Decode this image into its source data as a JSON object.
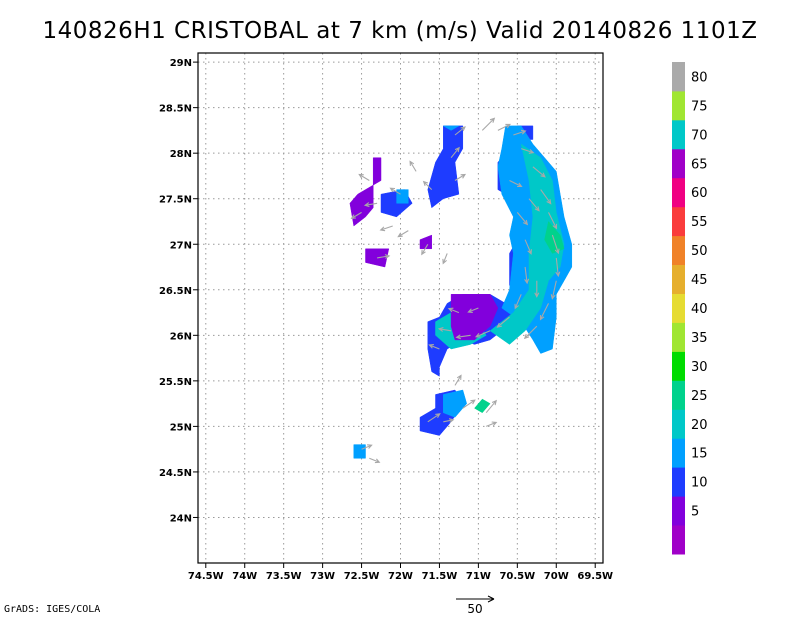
{
  "title": "140826H1 CRISTOBAL at 7 km (m/s) Valid 20140826 1101Z",
  "footer": "GrADS: IGES/COLA",
  "reference_vector": {
    "label": "50",
    "value": 50,
    "units": "m/s"
  },
  "map": {
    "lon_range": [
      -74.6,
      -69.4
    ],
    "lat_range": [
      23.5,
      29.1
    ],
    "lon_ticks": [
      {
        "value": -74.5,
        "label": "74.5W"
      },
      {
        "value": -74.0,
        "label": "74W"
      },
      {
        "value": -73.5,
        "label": "73.5W"
      },
      {
        "value": -73.0,
        "label": "73W"
      },
      {
        "value": -72.5,
        "label": "72.5W"
      },
      {
        "value": -72.0,
        "label": "72W"
      },
      {
        "value": -71.5,
        "label": "71.5W"
      },
      {
        "value": -71.0,
        "label": "71W"
      },
      {
        "value": -70.5,
        "label": "70.5W"
      },
      {
        "value": -70.0,
        "label": "70W"
      },
      {
        "value": -69.5,
        "label": "69.5W"
      }
    ],
    "lat_ticks": [
      {
        "value": 29.0,
        "label": "29N"
      },
      {
        "value": 28.5,
        "label": "28.5N"
      },
      {
        "value": 28.0,
        "label": "28N"
      },
      {
        "value": 27.5,
        "label": "27.5N"
      },
      {
        "value": 27.0,
        "label": "27N"
      },
      {
        "value": 26.5,
        "label": "26.5N"
      },
      {
        "value": 26.0,
        "label": "26N"
      },
      {
        "value": 25.5,
        "label": "25.5N"
      },
      {
        "value": 25.0,
        "label": "25N"
      },
      {
        "value": 24.5,
        "label": "24.5N"
      },
      {
        "value": 24.0,
        "label": "24N"
      }
    ],
    "grid": "dotted"
  },
  "colorbar": {
    "levels": [
      {
        "label": "",
        "color": "#a000c8"
      },
      {
        "label": "5",
        "color": "#8200dc"
      },
      {
        "label": "10",
        "color": "#1e3cff"
      },
      {
        "label": "15",
        "color": "#00a0ff"
      },
      {
        "label": "20",
        "color": "#00c8c8"
      },
      {
        "label": "25",
        "color": "#00d28c"
      },
      {
        "label": "30",
        "color": "#00dc00"
      },
      {
        "label": "35",
        "color": "#a0e632"
      },
      {
        "label": "40",
        "color": "#e6dc32"
      },
      {
        "label": "45",
        "color": "#e6af2d"
      },
      {
        "label": "50",
        "color": "#f08228"
      },
      {
        "label": "55",
        "color": "#fa3c3c"
      },
      {
        "label": "60",
        "color": "#f00082"
      },
      {
        "label": "65",
        "color": "#a000c8"
      },
      {
        "label": "70",
        "color": "#00c8c8"
      },
      {
        "label": "75",
        "color": "#a0e632"
      },
      {
        "label": "80",
        "color": "#aaaaaa"
      }
    ]
  },
  "wind_speed_regions": [
    {
      "level": 2,
      "polygon": [
        [
          -70.5,
          28.3
        ],
        [
          -70.3,
          28.3
        ],
        [
          -70.3,
          28.15
        ],
        [
          -70.45,
          28.15
        ],
        [
          -70.6,
          28.05
        ],
        [
          -70.75,
          27.9
        ],
        [
          -70.75,
          27.6
        ],
        [
          -70.55,
          27.5
        ],
        [
          -70.4,
          27.25
        ],
        [
          -70.5,
          27.05
        ],
        [
          -70.6,
          26.9
        ],
        [
          -70.6,
          26.55
        ],
        [
          -70.5,
          26.45
        ],
        [
          -70.3,
          26.45
        ],
        [
          -70.3,
          26.2
        ],
        [
          -70.55,
          26.3
        ],
        [
          -70.85,
          26.45
        ],
        [
          -71.2,
          26.45
        ],
        [
          -71.4,
          26.35
        ],
        [
          -71.5,
          26.2
        ],
        [
          -71.65,
          26.15
        ],
        [
          -71.65,
          25.85
        ],
        [
          -71.6,
          25.6
        ],
        [
          -71.5,
          25.55
        ],
        [
          -71.5,
          25.65
        ],
        [
          -71.4,
          25.85
        ],
        [
          -71.2,
          25.95
        ],
        [
          -71.05,
          25.9
        ],
        [
          -70.85,
          25.95
        ],
        [
          -70.7,
          26.05
        ],
        [
          -70.5,
          26.2
        ],
        [
          -70.35,
          26.35
        ],
        [
          -70.35,
          26.55
        ],
        [
          -70.45,
          26.95
        ],
        [
          -70.35,
          27.2
        ],
        [
          -70.3,
          27.6
        ],
        [
          -70.45,
          27.95
        ],
        [
          -70.5,
          28.3
        ]
      ]
    },
    {
      "level": 2,
      "polygon": [
        [
          -71.45,
          28.3
        ],
        [
          -71.2,
          28.3
        ],
        [
          -71.2,
          28.05
        ],
        [
          -71.3,
          27.9
        ],
        [
          -71.25,
          27.55
        ],
        [
          -71.45,
          27.5
        ],
        [
          -71.6,
          27.4
        ],
        [
          -71.65,
          27.6
        ],
        [
          -71.55,
          27.9
        ],
        [
          -71.45,
          28.05
        ],
        [
          -71.45,
          28.3
        ]
      ]
    },
    {
      "level": 2,
      "polygon": [
        [
          -72.25,
          27.55
        ],
        [
          -71.95,
          27.6
        ],
        [
          -71.85,
          27.45
        ],
        [
          -72.05,
          27.3
        ],
        [
          -72.25,
          27.35
        ],
        [
          -72.25,
          27.55
        ]
      ]
    },
    {
      "level": 2,
      "polygon": [
        [
          -71.55,
          25.35
        ],
        [
          -71.3,
          25.4
        ],
        [
          -71.2,
          25.25
        ],
        [
          -71.35,
          25.05
        ],
        [
          -71.5,
          24.9
        ],
        [
          -71.75,
          24.95
        ],
        [
          -71.75,
          25.1
        ],
        [
          -71.55,
          25.2
        ],
        [
          -71.55,
          25.35
        ]
      ]
    },
    {
      "level": 3,
      "polygon": [
        [
          -70.65,
          28.3
        ],
        [
          -70.45,
          28.3
        ],
        [
          -70.3,
          28.1
        ],
        [
          -70.15,
          27.95
        ],
        [
          -70.0,
          27.8
        ],
        [
          -69.95,
          27.55
        ],
        [
          -69.9,
          27.3
        ],
        [
          -69.8,
          27.0
        ],
        [
          -69.8,
          26.75
        ],
        [
          -69.9,
          26.6
        ],
        [
          -70.0,
          26.45
        ],
        [
          -70.0,
          26.2
        ],
        [
          -70.05,
          25.85
        ],
        [
          -70.2,
          25.8
        ],
        [
          -70.3,
          25.95
        ],
        [
          -70.45,
          26.15
        ],
        [
          -70.7,
          26.3
        ],
        [
          -70.6,
          26.5
        ],
        [
          -70.55,
          26.9
        ],
        [
          -70.6,
          27.1
        ],
        [
          -70.55,
          27.3
        ],
        [
          -70.7,
          27.55
        ],
        [
          -70.75,
          27.85
        ],
        [
          -70.7,
          28.05
        ],
        [
          -70.65,
          28.3
        ]
      ]
    },
    {
      "level": 3,
      "polygon": [
        [
          -71.45,
          28.3
        ],
        [
          -71.25,
          28.3
        ],
        [
          -71.35,
          28.25
        ],
        [
          -71.45,
          28.3
        ]
      ]
    },
    {
      "level": 3,
      "polygon": [
        [
          -72.05,
          27.6
        ],
        [
          -71.9,
          27.6
        ],
        [
          -71.9,
          27.45
        ],
        [
          -72.05,
          27.45
        ],
        [
          -72.05,
          27.6
        ]
      ]
    },
    {
      "level": 3,
      "polygon": [
        [
          -71.45,
          25.35
        ],
        [
          -71.2,
          25.4
        ],
        [
          -71.15,
          25.25
        ],
        [
          -71.3,
          25.1
        ],
        [
          -71.45,
          25.15
        ],
        [
          -71.45,
          25.35
        ]
      ]
    },
    {
      "level": 3,
      "polygon": [
        [
          -72.6,
          24.8
        ],
        [
          -72.45,
          24.8
        ],
        [
          -72.45,
          24.65
        ],
        [
          -72.6,
          24.65
        ],
        [
          -72.6,
          24.8
        ]
      ]
    },
    {
      "level": 4,
      "polygon": [
        [
          -70.45,
          28.1
        ],
        [
          -70.2,
          27.95
        ],
        [
          -70.05,
          27.7
        ],
        [
          -70.0,
          27.35
        ],
        [
          -69.9,
          27.0
        ],
        [
          -69.95,
          26.75
        ],
        [
          -70.1,
          26.6
        ],
        [
          -70.2,
          26.3
        ],
        [
          -70.4,
          26.05
        ],
        [
          -70.6,
          25.9
        ],
        [
          -70.85,
          26.05
        ],
        [
          -70.55,
          26.25
        ],
        [
          -70.35,
          26.5
        ],
        [
          -70.35,
          26.9
        ],
        [
          -70.3,
          27.3
        ],
        [
          -70.35,
          27.7
        ],
        [
          -70.45,
          28.1
        ]
      ]
    },
    {
      "level": 4,
      "polygon": [
        [
          -71.55,
          26.15
        ],
        [
          -71.25,
          26.3
        ],
        [
          -71.05,
          26.2
        ],
        [
          -70.9,
          26.0
        ],
        [
          -71.1,
          25.9
        ],
        [
          -71.35,
          25.85
        ],
        [
          -71.55,
          26.0
        ],
        [
          -71.55,
          26.15
        ]
      ]
    },
    {
      "level": 5,
      "polygon": [
        [
          -70.1,
          27.25
        ],
        [
          -69.95,
          27.1
        ],
        [
          -69.9,
          26.95
        ],
        [
          -70.05,
          26.9
        ],
        [
          -70.15,
          27.05
        ],
        [
          -70.1,
          27.25
        ]
      ]
    },
    {
      "level": 5,
      "polygon": [
        [
          -70.95,
          25.3
        ],
        [
          -70.85,
          25.25
        ],
        [
          -70.95,
          25.15
        ],
        [
          -71.05,
          25.2
        ],
        [
          -70.95,
          25.3
        ]
      ]
    },
    {
      "level": 1,
      "polygon": [
        [
          -72.35,
          27.95
        ],
        [
          -72.25,
          27.95
        ],
        [
          -72.25,
          27.7
        ],
        [
          -72.35,
          27.65
        ],
        [
          -72.55,
          27.55
        ],
        [
          -72.65,
          27.45
        ],
        [
          -72.6,
          27.2
        ],
        [
          -72.45,
          27.3
        ],
        [
          -72.35,
          27.4
        ],
        [
          -72.35,
          27.65
        ],
        [
          -72.35,
          27.95
        ]
      ]
    },
    {
      "level": 1,
      "polygon": [
        [
          -72.45,
          26.95
        ],
        [
          -72.15,
          26.95
        ],
        [
          -72.2,
          26.75
        ],
        [
          -72.45,
          26.8
        ],
        [
          -72.45,
          26.95
        ]
      ]
    },
    {
      "level": 1,
      "polygon": [
        [
          -71.35,
          26.45
        ],
        [
          -70.85,
          26.45
        ],
        [
          -70.75,
          26.3
        ],
        [
          -70.85,
          26.1
        ],
        [
          -71.05,
          25.95
        ],
        [
          -71.3,
          25.95
        ],
        [
          -71.35,
          26.1
        ],
        [
          -71.35,
          26.45
        ]
      ]
    },
    {
      "level": 1,
      "polygon": [
        [
          -71.75,
          27.05
        ],
        [
          -71.6,
          27.1
        ],
        [
          -71.6,
          26.95
        ],
        [
          -71.75,
          26.95
        ],
        [
          -71.75,
          27.05
        ]
      ]
    }
  ],
  "wind_vectors": [
    {
      "lon": -70.95,
      "lat": 28.25,
      "u": 6,
      "v": 6
    },
    {
      "lon": -70.75,
      "lat": 28.25,
      "u": 6,
      "v": 3
    },
    {
      "lon": -70.55,
      "lat": 28.2,
      "u": 6,
      "v": 2
    },
    {
      "lon": -70.45,
      "lat": 28.05,
      "u": 6,
      "v": -2
    },
    {
      "lon": -70.3,
      "lat": 27.85,
      "u": 6,
      "v": -5
    },
    {
      "lon": -70.2,
      "lat": 27.6,
      "u": 5,
      "v": -7
    },
    {
      "lon": -70.1,
      "lat": 27.35,
      "u": 4,
      "v": -8
    },
    {
      "lon": -70.05,
      "lat": 27.1,
      "u": 3,
      "v": -9
    },
    {
      "lon": -70.0,
      "lat": 26.85,
      "u": 1,
      "v": -9
    },
    {
      "lon": -70.0,
      "lat": 26.6,
      "u": -2,
      "v": -9
    },
    {
      "lon": -70.1,
      "lat": 26.35,
      "u": -4,
      "v": -8
    },
    {
      "lon": -70.25,
      "lat": 26.1,
      "u": -6,
      "v": -6
    },
    {
      "lon": -70.6,
      "lat": 27.7,
      "u": 6,
      "v": -3
    },
    {
      "lon": -70.5,
      "lat": 27.35,
      "u": 5,
      "v": -6
    },
    {
      "lon": -70.4,
      "lat": 27.05,
      "u": 3,
      "v": -7
    },
    {
      "lon": -70.4,
      "lat": 26.75,
      "u": 1,
      "v": -8
    },
    {
      "lon": -70.45,
      "lat": 26.45,
      "u": -3,
      "v": -7
    },
    {
      "lon": -70.6,
      "lat": 26.2,
      "u": -6,
      "v": -5
    },
    {
      "lon": -70.85,
      "lat": 26.05,
      "u": -7,
      "v": -3
    },
    {
      "lon": -71.1,
      "lat": 26.0,
      "u": -7,
      "v": -1
    },
    {
      "lon": -71.35,
      "lat": 26.05,
      "u": -6,
      "v": 1
    },
    {
      "lon": -71.5,
      "lat": 25.85,
      "u": -5,
      "v": 2
    },
    {
      "lon": -71.0,
      "lat": 26.3,
      "u": -5,
      "v": -2
    },
    {
      "lon": -71.25,
      "lat": 26.25,
      "u": -5,
      "v": 2
    },
    {
      "lon": -71.3,
      "lat": 28.2,
      "u": 5,
      "v": 4
    },
    {
      "lon": -71.35,
      "lat": 27.95,
      "u": 4,
      "v": 5
    },
    {
      "lon": -71.3,
      "lat": 27.7,
      "u": 5,
      "v": 3
    },
    {
      "lon": -71.6,
      "lat": 27.6,
      "u": -4,
      "v": 4
    },
    {
      "lon": -71.8,
      "lat": 27.8,
      "u": -3,
      "v": 5
    },
    {
      "lon": -72.0,
      "lat": 27.55,
      "u": -5,
      "v": 3
    },
    {
      "lon": -72.3,
      "lat": 27.45,
      "u": -6,
      "v": -1
    },
    {
      "lon": -72.5,
      "lat": 27.35,
      "u": -5,
      "v": -3
    },
    {
      "lon": -72.4,
      "lat": 27.7,
      "u": -5,
      "v": 3
    },
    {
      "lon": -72.1,
      "lat": 27.2,
      "u": -6,
      "v": -2
    },
    {
      "lon": -71.9,
      "lat": 27.15,
      "u": -5,
      "v": -3
    },
    {
      "lon": -71.65,
      "lat": 27.0,
      "u": -3,
      "v": -5
    },
    {
      "lon": -71.4,
      "lat": 26.9,
      "u": -2,
      "v": -5
    },
    {
      "lon": -72.3,
      "lat": 26.85,
      "u": 6,
      "v": 1
    },
    {
      "lon": -71.3,
      "lat": 25.45,
      "u": 3,
      "v": 5
    },
    {
      "lon": -71.2,
      "lat": 25.2,
      "u": 6,
      "v": 4
    },
    {
      "lon": -71.45,
      "lat": 25.05,
      "u": 5,
      "v": 1
    },
    {
      "lon": -71.65,
      "lat": 25.05,
      "u": 6,
      "v": 4
    },
    {
      "lon": -70.9,
      "lat": 25.15,
      "u": 5,
      "v": 6
    },
    {
      "lon": -70.9,
      "lat": 25.0,
      "u": 5,
      "v": 2
    },
    {
      "lon": -72.5,
      "lat": 24.75,
      "u": 5,
      "v": 2
    },
    {
      "lon": -72.4,
      "lat": 24.65,
      "u": 5,
      "v": -2
    },
    {
      "lon": -70.25,
      "lat": 26.6,
      "u": 0,
      "v": -8
    },
    {
      "lon": -70.35,
      "lat": 27.5,
      "u": 5,
      "v": -6
    }
  ]
}
